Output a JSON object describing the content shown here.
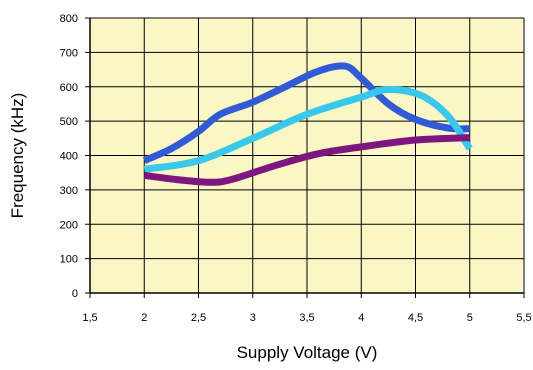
{
  "chart_data": {
    "type": "line",
    "title": "",
    "xlabel": "Supply Voltage (V)",
    "ylabel": "Frequency (kHz)",
    "xlim": [
      1.5,
      5.5
    ],
    "ylim": [
      0,
      800
    ],
    "x_ticks": [
      "1,5",
      "2",
      "2,5",
      "3",
      "3,5",
      "4",
      "4,5",
      "5",
      "5,5"
    ],
    "y_ticks": [
      "0",
      "100",
      "200",
      "300",
      "400",
      "500",
      "600",
      "700",
      "800"
    ],
    "grid": true,
    "legend": "none",
    "colors": {
      "plot_background": "#fbf7c4",
      "grid": "#000000",
      "series_1": "#2f5bd6",
      "series_2": "#37c8ec",
      "series_3": "#7e1680"
    },
    "series": [
      {
        "x": [
          2.0,
          2.25,
          2.5,
          2.7,
          3.0,
          3.3,
          3.6,
          3.85,
          4.0,
          4.25,
          4.5,
          4.8,
          5.0
        ],
        "values": [
          385,
          420,
          470,
          520,
          555,
          600,
          645,
          660,
          625,
          550,
          505,
          480,
          478
        ]
      },
      {
        "x": [
          2.0,
          2.5,
          3.0,
          3.5,
          4.0,
          4.25,
          4.55,
          4.8,
          5.0
        ],
        "values": [
          360,
          385,
          450,
          520,
          570,
          592,
          575,
          515,
          420
        ]
      },
      {
        "x": [
          2.0,
          2.3,
          2.6,
          2.8,
          3.2,
          3.6,
          4.0,
          4.5,
          5.0
        ],
        "values": [
          342,
          330,
          322,
          330,
          370,
          405,
          425,
          445,
          452
        ]
      }
    ]
  }
}
